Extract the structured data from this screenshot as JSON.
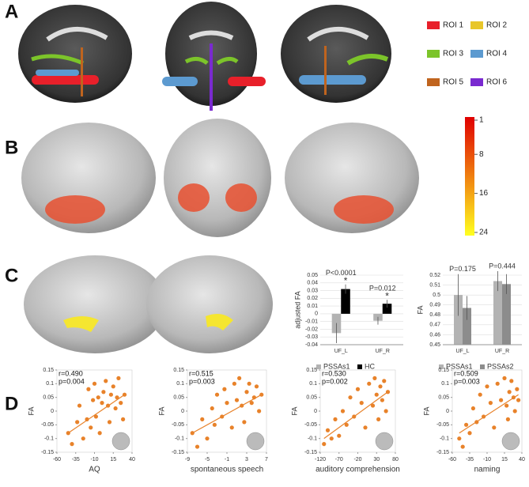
{
  "panel_labels": [
    "A",
    "B",
    "C",
    "D"
  ],
  "roi_legend": [
    {
      "name": "ROI 1",
      "color": "#e8202a"
    },
    {
      "name": "ROI 2",
      "color": "#e8c62a"
    },
    {
      "name": "ROI 3",
      "color": "#7cc42a"
    },
    {
      "name": "ROI 4",
      "color": "#5c9ad0"
    },
    {
      "name": "ROI 5",
      "color": "#c0641e"
    },
    {
      "name": "ROI 6",
      "color": "#7a2ad0"
    }
  ],
  "colorbar": {
    "ticks": [
      1,
      8,
      16,
      24
    ],
    "colors": [
      "#e00000",
      "#ffff20"
    ]
  },
  "chart_data": [
    {
      "type": "bar",
      "y_label": "adjusted FA",
      "categories": [
        "UF_L",
        "UF_R"
      ],
      "series": [
        {
          "name": "PSSAs1",
          "color": "#b3b3b3",
          "values": [
            -0.025,
            -0.009
          ],
          "error": [
            0.013,
            0.005
          ]
        },
        {
          "name": "HC",
          "color": "#000000",
          "values": [
            0.032,
            0.013
          ],
          "error": [
            0.006,
            0.005
          ]
        }
      ],
      "annotations": [
        "P<0.0001",
        "P=0.012"
      ],
      "significance": [
        "*",
        "*"
      ],
      "ylim": [
        -0.04,
        0.05
      ],
      "yticks": [
        -0.04,
        -0.03,
        -0.02,
        -0.01,
        0,
        0.01,
        0.02,
        0.03,
        0.04,
        0.05
      ],
      "grid": true
    },
    {
      "type": "bar",
      "y_label": "FA",
      "categories": [
        "UF_L",
        "UF_R"
      ],
      "series": [
        {
          "name": "PSSAs1",
          "color": "#b3b3b3",
          "values": [
            0.5,
            0.514
          ],
          "error": [
            0.021,
            0.01
          ]
        },
        {
          "name": "PSSAs2",
          "color": "#8c8c8c",
          "values": [
            0.487,
            0.511
          ],
          "error": [
            0.012,
            0.01
          ]
        }
      ],
      "annotations": [
        "P=0.175",
        "P=0.444"
      ],
      "ylim": [
        0.45,
        0.52
      ],
      "yticks": [
        0.45,
        0.46,
        0.47,
        0.48,
        0.49,
        0.5,
        0.51,
        0.52
      ],
      "grid": true
    },
    {
      "type": "scatter",
      "x_label": "AQ",
      "y_label": "FA",
      "stats": [
        "r=0.490",
        "p=0.004"
      ],
      "color": "#e8822a",
      "x": [
        -45,
        -40,
        -33,
        -30,
        -25,
        -20,
        -18,
        -15,
        -12,
        -10,
        -8,
        -5,
        -3,
        0,
        2,
        5,
        8,
        10,
        12,
        15,
        18,
        20,
        22,
        25,
        28,
        30
      ],
      "y": [
        -0.08,
        -0.12,
        -0.04,
        0.02,
        -0.1,
        -0.03,
        0.08,
        -0.06,
        0.04,
        0.1,
        -0.02,
        0.05,
        -0.08,
        0.03,
        0.07,
        0.11,
        0.02,
        -0.04,
        0.06,
        0.09,
        0.01,
        0.05,
        0.12,
        0.03,
        -0.03,
        0.06
      ],
      "trendline": {
        "x": [
          -45,
          30
        ],
        "y": [
          -0.08,
          0.06
        ]
      },
      "xlim": [
        -60,
        40
      ],
      "xticks": [
        -60,
        -35,
        -10,
        15,
        40
      ],
      "ylim": [
        -0.15,
        0.15
      ],
      "yticks": [
        -0.15,
        -0.1,
        -0.05,
        0,
        0.05,
        0.1,
        0.15
      ]
    },
    {
      "type": "scatter",
      "x_label": "spontaneous speech",
      "y_label": "FA",
      "stats": [
        "r=0.515",
        "p=0.003"
      ],
      "color": "#e8822a",
      "x": [
        -8,
        -7,
        -6,
        -5,
        -4,
        -3.5,
        -3,
        -2,
        -1.5,
        -1,
        0,
        0.5,
        1,
        1.5,
        2,
        2.5,
        3,
        3.5,
        4,
        4.5,
        5,
        5.5,
        6
      ],
      "y": [
        -0.08,
        -0.13,
        -0.03,
        -0.1,
        0.01,
        -0.05,
        0.06,
        -0.02,
        0.08,
        0.03,
        -0.06,
        0.1,
        0.04,
        0.12,
        0.02,
        -0.04,
        0.07,
        0.1,
        0.03,
        0.05,
        0.09,
        0.0,
        0.06
      ],
      "trendline": {
        "x": [
          -8,
          6
        ],
        "y": [
          -0.08,
          0.06
        ]
      },
      "xlim": [
        -9,
        7
      ],
      "xticks": [
        -9,
        -5,
        -1,
        3,
        7
      ],
      "ylim": [
        -0.15,
        0.15
      ],
      "yticks": [
        -0.15,
        -0.1,
        -0.05,
        0,
        0.05,
        0.1,
        0.15
      ]
    },
    {
      "type": "scatter",
      "x_label": "auditory comprehension",
      "y_label": "FA",
      "stats": [
        "r=0.530",
        "p=0.002"
      ],
      "color": "#e8822a",
      "x": [
        -110,
        -100,
        -90,
        -80,
        -70,
        -60,
        -50,
        -40,
        -30,
        -20,
        -10,
        0,
        10,
        20,
        25,
        30,
        35,
        40,
        45,
        50,
        55,
        60
      ],
      "y": [
        -0.12,
        -0.07,
        -0.1,
        -0.03,
        -0.09,
        0.0,
        -0.05,
        0.05,
        -0.02,
        0.08,
        0.03,
        -0.06,
        0.1,
        0.02,
        0.12,
        0.06,
        -0.03,
        0.09,
        0.04,
        0.11,
        0.0,
        0.07
      ],
      "trendline": {
        "x": [
          -110,
          60
        ],
        "y": [
          -0.1,
          0.07
        ]
      },
      "xlim": [
        -120,
        80
      ],
      "xticks": [
        -120,
        -70,
        -20,
        30,
        80
      ],
      "ylim": [
        -0.15,
        0.15
      ],
      "yticks": [
        -0.15,
        -0.1,
        -0.05,
        0,
        0.05,
        0.1,
        0.15
      ]
    },
    {
      "type": "scatter",
      "x_label": "naming",
      "y_label": "FA",
      "stats": [
        "r=0.509",
        "p=0.003"
      ],
      "color": "#e8822a",
      "x": [
        -50,
        -45,
        -40,
        -35,
        -30,
        -25,
        -20,
        -15,
        -10,
        -5,
        0,
        5,
        10,
        15,
        18,
        20,
        22,
        25,
        28,
        30,
        33,
        35
      ],
      "y": [
        -0.1,
        -0.13,
        -0.05,
        -0.08,
        0.01,
        -0.04,
        0.06,
        -0.02,
        0.09,
        0.03,
        -0.06,
        0.1,
        0.04,
        0.12,
        0.02,
        -0.03,
        0.07,
        0.11,
        0.05,
        0.0,
        0.08,
        0.04
      ],
      "trendline": {
        "x": [
          -50,
          35
        ],
        "y": [
          -0.08,
          0.06
        ]
      },
      "xlim": [
        -60,
        40
      ],
      "xticks": [
        -60,
        -35,
        -10,
        15,
        40
      ],
      "ylim": [
        -0.15,
        0.15
      ],
      "yticks": [
        -0.15,
        -0.1,
        -0.05,
        0,
        0.05,
        0.1,
        0.15
      ]
    }
  ]
}
